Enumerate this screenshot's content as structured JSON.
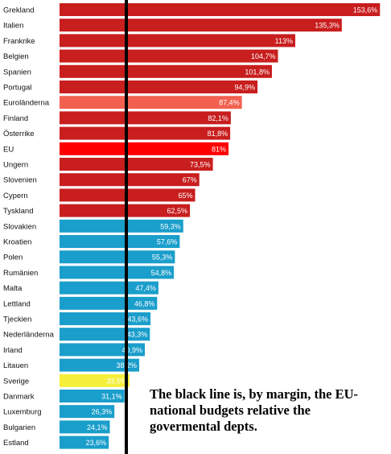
{
  "chart_data": {
    "type": "bar",
    "orientation": "horizontal",
    "title": "",
    "xlabel": "",
    "ylabel": "",
    "xlim": [
      0,
      160
    ],
    "grid": false,
    "legend": "none",
    "categories": [
      "Grekland",
      "Italien",
      "Frankrike",
      "Belgien",
      "Spanien",
      "Portugal",
      "Euroländerna",
      "Finland",
      "Österrike",
      "EU",
      "Ungern",
      "Slovenien",
      "Cypern",
      "Tyskland",
      "Slovakien",
      "Kroatien",
      "Polen",
      "Rumänien",
      "Malta",
      "Lettland",
      "Tjeckien",
      "Nederländerna",
      "Irland",
      "Litauen",
      "Sverige",
      "Danmark",
      "Luxemburg",
      "Bulgarien",
      "Estland"
    ],
    "values": [
      153.6,
      135.3,
      113,
      104.7,
      101.8,
      94.9,
      87.4,
      82.1,
      81.8,
      81,
      73.5,
      67,
      65,
      62.5,
      59.3,
      57.6,
      55.3,
      54.8,
      47.4,
      46.8,
      43.6,
      43.3,
      40.9,
      38.2,
      33.5,
      31.1,
      26.3,
      24.1,
      23.6
    ],
    "value_labels": [
      "153,6%",
      "135,3%",
      "113%",
      "104,7%",
      "101,8%",
      "94,9%",
      "87,4%",
      "82,1%",
      "81,8%",
      "81%",
      "73,5%",
      "67%",
      "65%",
      "62,5%",
      "59,3%",
      "57,6%",
      "55,3%",
      "54,8%",
      "47,4%",
      "46,8%",
      "43,6%",
      "43,3%",
      "40,9%",
      "38,2%",
      "33,5%",
      "31,1%",
      "26,3%",
      "24,1%",
      "23,6%"
    ],
    "colors": [
      "#c81e1e",
      "#c81e1e",
      "#c81e1e",
      "#c81e1e",
      "#c81e1e",
      "#c81e1e",
      "#f2604f",
      "#c81e1e",
      "#c81e1e",
      "#ff0000",
      "#c81e1e",
      "#c81e1e",
      "#c81e1e",
      "#c81e1e",
      "#1a9ecb",
      "#1a9ecb",
      "#1a9ecb",
      "#1a9ecb",
      "#1a9ecb",
      "#1a9ecb",
      "#1a9ecb",
      "#1a9ecb",
      "#1a9ecb",
      "#1a9ecb",
      "#f5ef3a",
      "#1a9ecb",
      "#1a9ecb",
      "#1a9ecb",
      "#1a9ecb"
    ],
    "reference_line": {
      "color": "#000000"
    }
  },
  "annotation": {
    "text": "The black line is, by margin, the EU-national budgets relative the govermental depts."
  }
}
